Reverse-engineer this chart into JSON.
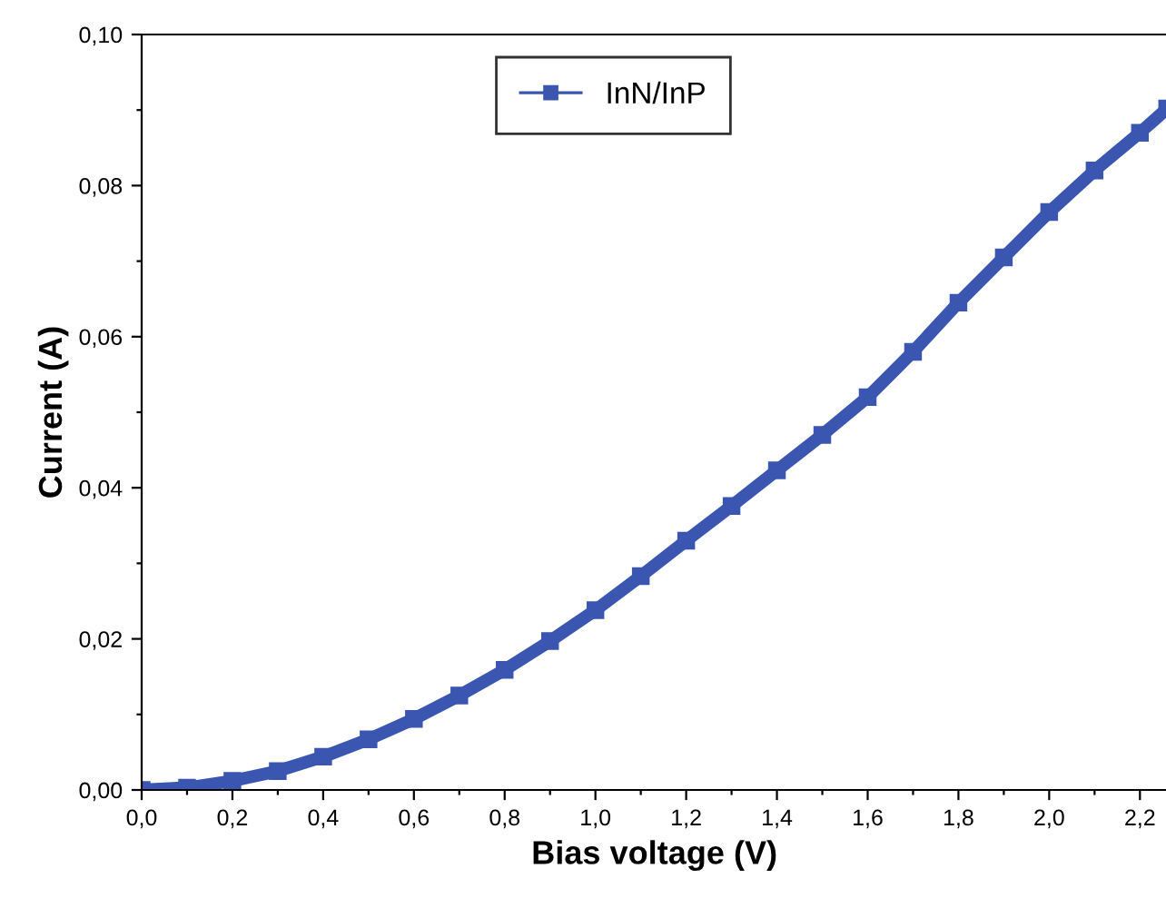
{
  "chart_data": {
    "type": "line",
    "xlabel": "Bias voltage (V)",
    "ylabel": "Current (A)",
    "x": [
      0,
      0.1,
      0.2,
      0.3,
      0.4,
      0.5,
      0.6,
      0.7,
      0.8,
      0.9,
      1.0,
      1.1,
      1.2,
      1.3,
      1.4,
      1.5,
      1.6,
      1.7,
      1.8,
      1.9,
      2.0,
      2.1,
      2.2,
      2.26
    ],
    "series": [
      {
        "name": "InN/InP",
        "color": "#3a56b0",
        "values": [
          0,
          0.0003,
          0.0012,
          0.0025,
          0.0044,
          0.0067,
          0.0094,
          0.0125,
          0.0159,
          0.0197,
          0.0238,
          0.0283,
          0.033,
          0.0376,
          0.0423,
          0.047,
          0.052,
          0.058,
          0.0645,
          0.0705,
          0.0765,
          0.082,
          0.087,
          0.0902
        ]
      }
    ],
    "xlim": [
      0,
      2.26
    ],
    "ylim": [
      0,
      0.1
    ],
    "xticks": [
      {
        "value": 0,
        "label": "0,0"
      },
      {
        "value": 0.1,
        "label": null
      },
      {
        "value": 0.2,
        "label": "0,2"
      },
      {
        "value": 0.3,
        "label": null
      },
      {
        "value": 0.4,
        "label": "0,4"
      },
      {
        "value": 0.5,
        "label": null
      },
      {
        "value": 0.6,
        "label": "0,6"
      },
      {
        "value": 0.7,
        "label": null
      },
      {
        "value": 0.8,
        "label": "0,8"
      },
      {
        "value": 0.9,
        "label": null
      },
      {
        "value": 1.0,
        "label": "1,0"
      },
      {
        "value": 1.1,
        "label": null
      },
      {
        "value": 1.2,
        "label": "1,2"
      },
      {
        "value": 1.3,
        "label": null
      },
      {
        "value": 1.4,
        "label": "1,4"
      },
      {
        "value": 1.5,
        "label": null
      },
      {
        "value": 1.6,
        "label": "1,6"
      },
      {
        "value": 1.7,
        "label": null
      },
      {
        "value": 1.8,
        "label": "1,8"
      },
      {
        "value": 1.9,
        "label": null
      },
      {
        "value": 2.0,
        "label": "2,0"
      },
      {
        "value": 2.1,
        "label": null
      },
      {
        "value": 2.2,
        "label": "2,2"
      }
    ],
    "yticks": [
      {
        "value": 0,
        "label": "0,00"
      },
      {
        "value": 0.01,
        "label": null
      },
      {
        "value": 0.02,
        "label": "0,02"
      },
      {
        "value": 0.03,
        "label": null
      },
      {
        "value": 0.04,
        "label": "0,04"
      },
      {
        "value": 0.05,
        "label": null
      },
      {
        "value": 0.06,
        "label": "0,06"
      },
      {
        "value": 0.07,
        "label": null
      },
      {
        "value": 0.08,
        "label": "0,08"
      },
      {
        "value": 0.09,
        "label": null
      },
      {
        "value": 0.1,
        "label": "0,10"
      }
    ],
    "legend": "top center",
    "marker": "square",
    "grid": false
  }
}
